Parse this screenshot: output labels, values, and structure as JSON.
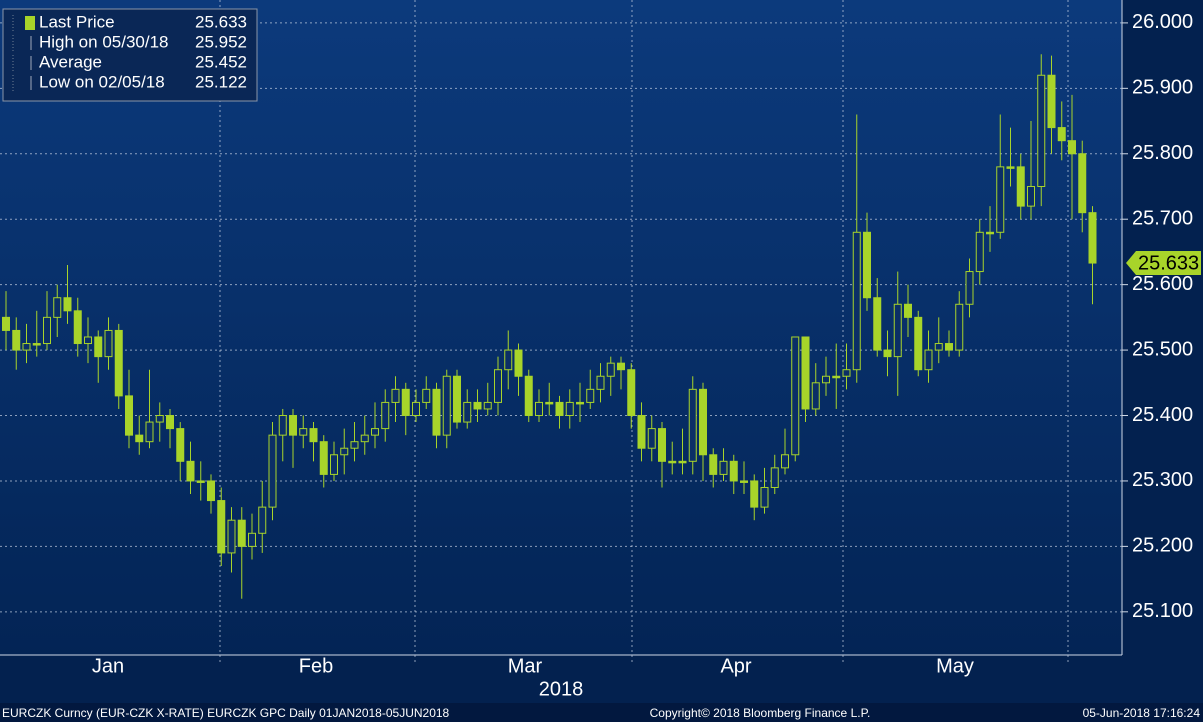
{
  "chart_data": {
    "type": "candlestick",
    "xlabel": "2018",
    "categories": [
      "Jan",
      "Feb",
      "Mar",
      "Apr",
      "May"
    ],
    "ylim": [
      25.034,
      26.035
    ],
    "yticks": [
      {
        "value": 25.1,
        "label": "25.100"
      },
      {
        "value": 25.2,
        "label": "25.200"
      },
      {
        "value": 25.3,
        "label": "25.300"
      },
      {
        "value": 25.4,
        "label": "25.400"
      },
      {
        "value": 25.5,
        "label": "25.500"
      },
      {
        "value": 25.6,
        "label": "25.600"
      },
      {
        "value": 25.7,
        "label": "25.700"
      },
      {
        "value": 25.8,
        "label": "25.800"
      },
      {
        "value": 25.9,
        "label": "25.900"
      },
      {
        "value": 26.0,
        "label": "26.000"
      }
    ],
    "grid": true,
    "legend": [
      {
        "label": "Last Price",
        "value": 25.633
      },
      {
        "label": "High on 05/30/18",
        "value": 25.952
      },
      {
        "label": "Average",
        "value": 25.452
      },
      {
        "label": "Low on 02/05/18",
        "value": 25.122
      }
    ],
    "footer": {
      "left": "EURCZK Curncy (EUR-CZK X-RATE) EURCZK GPC  Daily 01JAN2018-05JUN2018",
      "center": "Copyright© 2018 Bloomberg Finance L.P.",
      "right": "05-Jun-2018 17:16:24"
    },
    "series": [
      {
        "color": "#a8d42a",
        "open": [
          25.55,
          25.53,
          25.5,
          25.51,
          25.51,
          25.55,
          25.58,
          25.56,
          25.51,
          25.52,
          25.49,
          25.53,
          25.43,
          25.37,
          25.36,
          25.39,
          25.4,
          25.38,
          25.33,
          25.3,
          25.3,
          25.27,
          25.19,
          25.24,
          25.2,
          25.22,
          25.26,
          25.37,
          25.4,
          25.37,
          25.38,
          25.36,
          25.31,
          25.34,
          25.35,
          25.36,
          25.37,
          25.38,
          25.42,
          25.44,
          25.4,
          25.42,
          25.44,
          25.37,
          25.46,
          25.39,
          25.42,
          25.41,
          25.42,
          25.47,
          25.5,
          25.46,
          25.4,
          25.42,
          25.42,
          25.4,
          25.42,
          25.42,
          25.44,
          25.46,
          25.48,
          25.47,
          25.4,
          25.35,
          25.38,
          25.33,
          25.33,
          25.33,
          25.44,
          25.34,
          25.31,
          25.33,
          25.3,
          25.3,
          25.26,
          25.29,
          25.32,
          25.34,
          25.52,
          25.41,
          25.45,
          25.46,
          25.46,
          25.47,
          25.68,
          25.58,
          25.5,
          25.49,
          25.57,
          25.55,
          25.47,
          25.5,
          25.51,
          25.5,
          25.57,
          25.62,
          25.68,
          25.68,
          25.78,
          25.78,
          25.72,
          25.75,
          25.92,
          25.84,
          25.82,
          25.8,
          25.71
        ],
        "high": [
          25.59,
          25.55,
          25.54,
          25.56,
          25.59,
          25.6,
          25.63,
          25.58,
          25.55,
          25.53,
          25.55,
          25.54,
          25.47,
          25.4,
          25.47,
          25.42,
          25.41,
          25.39,
          25.36,
          25.33,
          25.31,
          25.29,
          25.26,
          25.26,
          25.25,
          25.3,
          25.39,
          25.41,
          25.41,
          25.4,
          25.39,
          25.37,
          25.36,
          25.38,
          25.39,
          25.4,
          25.42,
          25.44,
          25.46,
          25.45,
          25.44,
          25.46,
          25.45,
          25.47,
          25.47,
          25.44,
          25.44,
          25.45,
          25.49,
          25.53,
          25.51,
          25.47,
          25.44,
          25.45,
          25.43,
          25.44,
          25.45,
          25.47,
          25.48,
          25.49,
          25.49,
          25.48,
          25.42,
          25.4,
          25.39,
          25.36,
          25.38,
          25.46,
          25.45,
          25.35,
          25.35,
          25.34,
          25.33,
          25.31,
          25.32,
          25.34,
          25.38,
          25.52,
          25.52,
          25.48,
          25.49,
          25.51,
          25.51,
          25.86,
          25.71,
          25.61,
          25.53,
          25.62,
          25.6,
          25.56,
          25.53,
          25.55,
          25.53,
          25.59,
          25.64,
          25.7,
          25.72,
          25.86,
          25.84,
          25.8,
          25.85,
          25.952,
          25.95,
          25.88,
          25.89,
          25.82,
          25.72
        ],
        "low": [
          25.5,
          25.47,
          25.48,
          25.49,
          25.5,
          25.52,
          25.54,
          25.49,
          25.48,
          25.45,
          25.47,
          25.41,
          25.35,
          25.34,
          25.35,
          25.36,
          25.35,
          25.3,
          25.28,
          25.27,
          25.25,
          25.17,
          25.16,
          25.12,
          25.18,
          25.19,
          25.24,
          25.33,
          25.32,
          25.35,
          25.33,
          25.29,
          25.3,
          25.31,
          25.33,
          25.34,
          25.35,
          25.36,
          25.39,
          25.37,
          25.39,
          25.41,
          25.35,
          25.35,
          25.38,
          25.38,
          25.39,
          25.4,
          25.4,
          25.44,
          25.43,
          25.39,
          25.39,
          25.4,
          25.38,
          25.38,
          25.39,
          25.41,
          25.42,
          25.43,
          25.44,
          25.38,
          25.33,
          25.33,
          25.29,
          25.31,
          25.31,
          25.31,
          25.3,
          25.29,
          25.3,
          25.28,
          25.28,
          25.24,
          25.25,
          25.28,
          25.31,
          25.33,
          25.39,
          25.4,
          25.43,
          25.41,
          25.44,
          25.45,
          25.56,
          25.49,
          25.46,
          25.43,
          25.52,
          25.46,
          25.45,
          25.48,
          25.49,
          25.49,
          25.55,
          25.6,
          25.65,
          25.67,
          25.75,
          25.7,
          25.7,
          25.72,
          25.8,
          25.79,
          25.7,
          25.68,
          25.57
        ],
        "close": [
          25.53,
          25.5,
          25.51,
          25.51,
          25.55,
          25.58,
          25.56,
          25.51,
          25.52,
          25.49,
          25.53,
          25.43,
          25.37,
          25.36,
          25.39,
          25.4,
          25.38,
          25.33,
          25.3,
          25.3,
          25.27,
          25.19,
          25.24,
          25.2,
          25.22,
          25.26,
          25.37,
          25.4,
          25.37,
          25.38,
          25.36,
          25.31,
          25.34,
          25.35,
          25.36,
          25.37,
          25.38,
          25.42,
          25.44,
          25.4,
          25.42,
          25.44,
          25.37,
          25.46,
          25.39,
          25.42,
          25.41,
          25.42,
          25.47,
          25.5,
          25.46,
          25.4,
          25.42,
          25.42,
          25.4,
          25.42,
          25.42,
          25.44,
          25.46,
          25.48,
          25.47,
          25.4,
          25.35,
          25.38,
          25.33,
          25.33,
          25.33,
          25.44,
          25.34,
          25.31,
          25.33,
          25.3,
          25.3,
          25.26,
          25.29,
          25.32,
          25.34,
          25.52,
          25.41,
          25.45,
          25.46,
          25.46,
          25.47,
          25.68,
          25.58,
          25.5,
          25.49,
          25.57,
          25.55,
          25.47,
          25.5,
          25.51,
          25.5,
          25.57,
          25.62,
          25.68,
          25.68,
          25.78,
          25.78,
          25.72,
          25.75,
          25.92,
          25.84,
          25.82,
          25.8,
          25.71,
          25.633
        ]
      }
    ]
  }
}
